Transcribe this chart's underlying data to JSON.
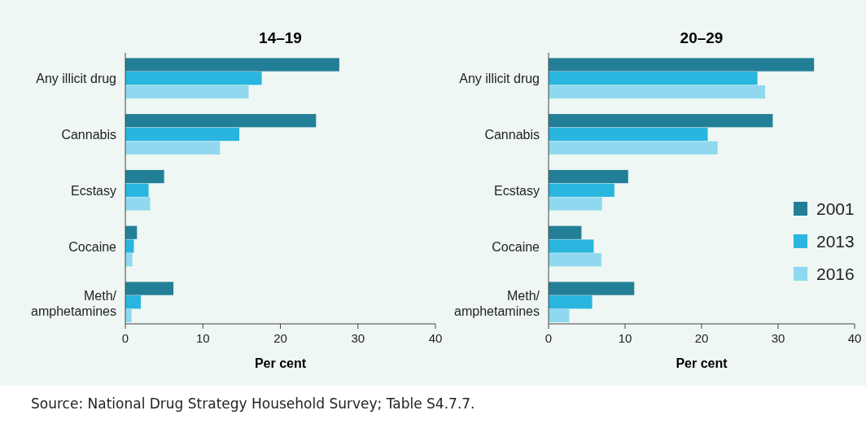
{
  "chart_data": [
    {
      "type": "bar",
      "orientation": "horizontal",
      "title": "14–19",
      "xlabel": "Per cent",
      "categories": [
        "Any illicit drug",
        "Cannabis",
        "Ecstasy",
        "Cocaine",
        "Meth/amphetamines"
      ],
      "series": [
        {
          "color": "#237f97",
          "values": [
            27.6,
            24.6,
            5.0,
            1.5,
            6.2
          ]
        },
        {
          "color": "#29b5de",
          "values": [
            17.6,
            14.7,
            3.0,
            1.1,
            2.0
          ]
        },
        {
          "color": "#8fd8f0",
          "values": [
            15.9,
            12.2,
            3.2,
            0.9,
            0.8
          ]
        }
      ],
      "xlim": [
        0,
        40
      ],
      "xticks": [
        0,
        10,
        20,
        30,
        40
      ],
      "grid": false,
      "legend": false,
      "annotations": [
        "Source: National Drug Strategy Household Survey; Table S4.7.7."
      ]
    },
    {
      "type": "bar",
      "orientation": "horizontal",
      "title": "20–29",
      "xlabel": "Per cent",
      "categories": [
        "Any illicit drug",
        "Cannabis",
        "Ecstasy",
        "Cocaine",
        "Meth/amphetamines"
      ],
      "series": [
        {
          "name": "2001",
          "color": "#237f97",
          "values": [
            34.7,
            29.3,
            10.4,
            4.3,
            11.2
          ]
        },
        {
          "name": "2013",
          "color": "#29b5de",
          "values": [
            27.3,
            20.8,
            8.6,
            5.9,
            5.7
          ]
        },
        {
          "name": "2016",
          "color": "#8fd8f0",
          "values": [
            28.3,
            22.1,
            7.0,
            6.9,
            2.7
          ]
        }
      ],
      "xlim": [
        0,
        40
      ],
      "xticks": [
        0,
        10,
        20,
        30,
        40
      ],
      "grid": false,
      "legend": "right"
    }
  ]
}
